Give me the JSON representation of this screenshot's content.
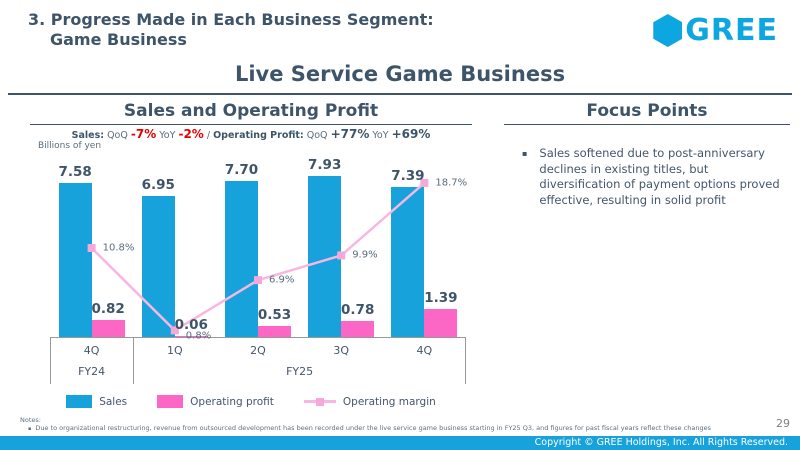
{
  "header": {
    "title_line1": "3. Progress Made in Each Business Segment:",
    "title_line2": "Game Business",
    "logo_text": "GREE",
    "page_title": "Live Service Game Business"
  },
  "icons": {
    "bullet_square": "▪",
    "note_bullet": "▪",
    "hexagon": "gree-hexagon"
  },
  "colors": {
    "brand_cyan": "#17A2DB",
    "bar_blue": "#17A2DB",
    "bar_pink": "#FC66C4",
    "line_pink": "#F8B7E2",
    "marker_pink": "#F6A8DA",
    "negative_red": "#E90000",
    "slate": "#3E5468"
  },
  "chart_section": {
    "title": "Sales and Operating Profit",
    "unit_label": "Billions of yen",
    "kpi": {
      "sales_label": "Sales:",
      "qoq_label": "QoQ",
      "sales_qoq": "-7%",
      "yoy_label": "YoY",
      "sales_yoy": "-2%",
      "separator": "/",
      "op_label": "Operating Profit:",
      "op_qoq": "+77%",
      "op_yoy": "+69%"
    }
  },
  "chart_data": {
    "type": "bar",
    "categories": [
      "4Q",
      "1Q",
      "2Q",
      "3Q",
      "4Q"
    ],
    "category_groups": [
      {
        "label": "FY24",
        "span": 1
      },
      {
        "label": "FY25",
        "span": 4
      }
    ],
    "series": [
      {
        "name": "Sales",
        "type": "bar",
        "color": "#17A2DB",
        "values": [
          7.58,
          6.95,
          7.7,
          7.93,
          7.39
        ]
      },
      {
        "name": "Operating profit",
        "type": "bar",
        "color": "#FC66C4",
        "values": [
          0.82,
          0.06,
          0.53,
          0.78,
          1.39
        ]
      },
      {
        "name": "Operating margin",
        "type": "line",
        "color": "#F8B7E2",
        "marker_color": "#F6A8DA",
        "values_pct": [
          10.8,
          0.8,
          6.9,
          9.9,
          18.7
        ],
        "labels": [
          "10.8%",
          "0.8%",
          "6.9%",
          "9.9%",
          "18.7%"
        ]
      }
    ],
    "title": "Sales and Operating Profit",
    "ylabel": "Billions of yen",
    "ylim": [
      0,
      9
    ],
    "y2lim_pct": [
      0,
      22
    ],
    "grid": false,
    "legend_position": "bottom"
  },
  "focus": {
    "title": "Focus Points",
    "bullets": [
      "Sales softened due to post-anniversary declines in existing titles, but diversification of payment options proved effective, resulting in solid profit"
    ]
  },
  "notes": {
    "label": "Notes:",
    "items": [
      "Due to organizational restructuring, revenue from outsourced development has been recorded under the live service game business starting in FY25 Q3, and figures for past fiscal years reflect these changes"
    ]
  },
  "footer": {
    "page_number": "29",
    "copyright": "Copyright © GREE Holdings, Inc. All Rights Reserved."
  }
}
